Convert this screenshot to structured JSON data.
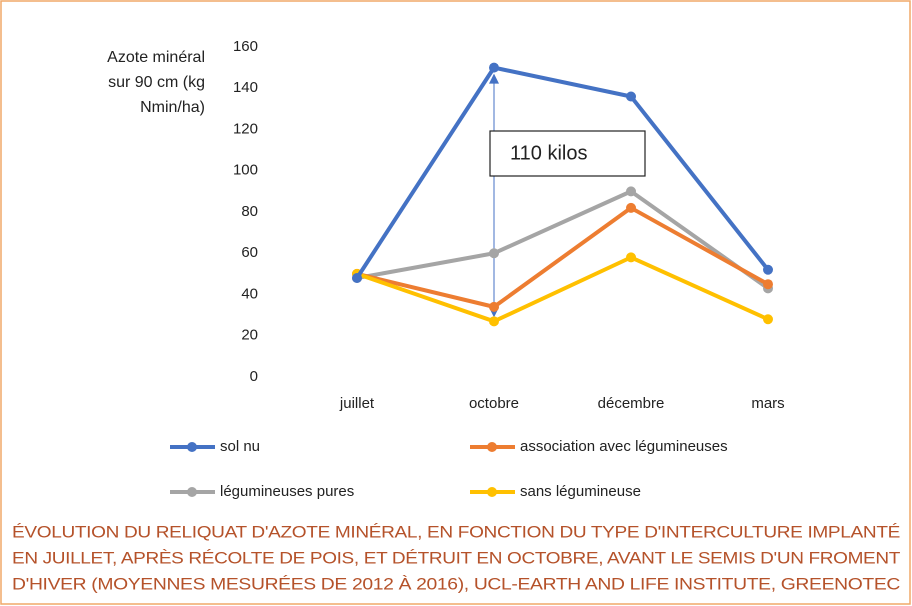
{
  "chart_data": {
    "type": "line",
    "y_label_lines": [
      "Azote minéral",
      "sur 90 cm (kg",
      "Nmin/ha)"
    ],
    "categories": [
      "juillet",
      "octobre",
      "décembre",
      "mars"
    ],
    "series": [
      {
        "name": "sol nu",
        "color": "#4472c4",
        "values": [
          48,
          150,
          136,
          52
        ]
      },
      {
        "name": "association avec légumineuses",
        "color": "#ed7d31",
        "values": [
          50,
          34,
          82,
          45
        ]
      },
      {
        "name": "légumineuses pures",
        "color": "#a5a5a5",
        "values": [
          48,
          60,
          90,
          43
        ]
      },
      {
        "name": "sans légumineuse",
        "color": "#ffc000",
        "values": [
          50,
          27,
          58,
          28
        ]
      }
    ],
    "ylim": [
      0,
      160
    ],
    "yticks": [
      0,
      20,
      40,
      60,
      80,
      100,
      120,
      140,
      160
    ],
    "grid": false,
    "annotation": "110 kilos",
    "caption_lines": [
      "ÉVOLUTION DU RELIQUAT D'AZOTE MINÉRAL, EN FONCTION DU TYPE D'INTERCULTURE IMPLANTÉ",
      "EN JUILLET, APRÈS RÉCOLTE DE POIS, ET DÉTRUIT EN OCTOBRE, AVANT LE SEMIS D'UN FROMENT",
      "D'HIVER (MOYENNES MESURÉES DE 2012 À 2016), UCL-EARTH AND LIFE INSTITUTE, GREENOTEC"
    ]
  }
}
